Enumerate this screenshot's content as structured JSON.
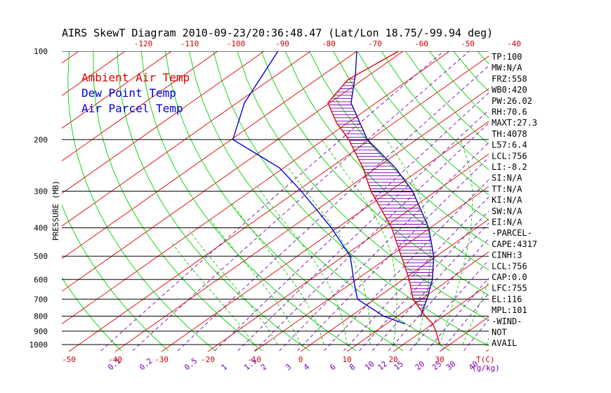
{
  "chart_data": {
    "type": "skewt",
    "title": "AIRS SkewT Diagram 2010-09-23/20:36:48.47 (Lat/Lon 18.75/-99.94 deg)",
    "ylabel": "PRESSURE (MB)",
    "xlabel": "T(C)",
    "mixing_ratio_unit": "(g/kg)",
    "pressure_levels": [
      100,
      200,
      300,
      400,
      500,
      600,
      700,
      800,
      900,
      1000
    ],
    "top_temperature_ticks": [
      -120,
      -110,
      -100,
      -90,
      -80,
      -70,
      -60,
      -50,
      -40
    ],
    "bottom_temperature_ticks": [
      -50,
      -40,
      -30,
      -20,
      -10,
      0,
      10,
      20,
      30
    ],
    "mixing_ratio_labels": [
      "0.1",
      "0.2",
      "0.5",
      "1",
      "1.5",
      "2",
      "3",
      "4",
      "6",
      "8",
      "10",
      "12",
      "15",
      "20",
      "25",
      "30",
      "40"
    ],
    "legend": [
      {
        "label": "Ambient Air Temp",
        "color": "#e00000"
      },
      {
        "label": "Dew Point Temp",
        "color": "#0000e0"
      },
      {
        "label": "Air Parcel Temp",
        "color": "#0000e0"
      }
    ],
    "colors": {
      "isotherm": "#e00000",
      "dry_adiabat": "#00d000",
      "moist_adiabat": "#00d000",
      "mixing_ratio": "#7a00b0",
      "isobar": "#000000",
      "cape_hatch": "#7a00b0"
    },
    "series": [
      {
        "name": "Ambient Air Temp",
        "pressure_mb": [
          1000,
          900,
          850,
          800,
          700,
          600,
          500,
          400,
          300,
          250,
          200,
          175,
          150,
          125,
          100
        ],
        "temp_c": [
          30,
          25,
          22,
          18,
          10,
          3,
          -6,
          -17,
          -33,
          -42,
          -54,
          -62,
          -70,
          -73,
          -71
        ]
      },
      {
        "name": "Dew Point Temp",
        "pressure_mb": [
          850,
          800,
          700,
          600,
          500,
          400,
          300,
          250,
          200,
          150,
          100
        ],
        "temp_c": [
          16,
          9,
          -2,
          -9,
          -17,
          -30,
          -48,
          -60,
          -79,
          -88,
          -97
        ]
      },
      {
        "name": "Air Parcel Temp",
        "pressure_mb": [
          800,
          750,
          700,
          600,
          500,
          400,
          300,
          250,
          200,
          150,
          120,
          100
        ],
        "temp_c": [
          17,
          15,
          13,
          8,
          1,
          -9,
          -24,
          -35,
          -50,
          -65,
          -73,
          -80
        ]
      }
    ]
  },
  "indices": [
    "TP:100",
    "MW:N/A",
    "FRZ:558",
    "WB0:420",
    "PW:26.02",
    "RH:70.6",
    "MAXT:27.3",
    "TH:4078",
    "L57:6.4",
    "LCL:756",
    "LI:-8.2",
    "SI:N/A",
    "TT:N/A",
    "KI:N/A",
    "SW:N/A",
    "EI:N/A",
    "-PARCEL-",
    "CAPE:4317",
    "CINH:3",
    "LCL:756",
    "CAP:0.0",
    "LFC:755",
    "EL:116",
    "MPL:101",
    "-WIND-",
    "NOT",
    "AVAIL"
  ]
}
